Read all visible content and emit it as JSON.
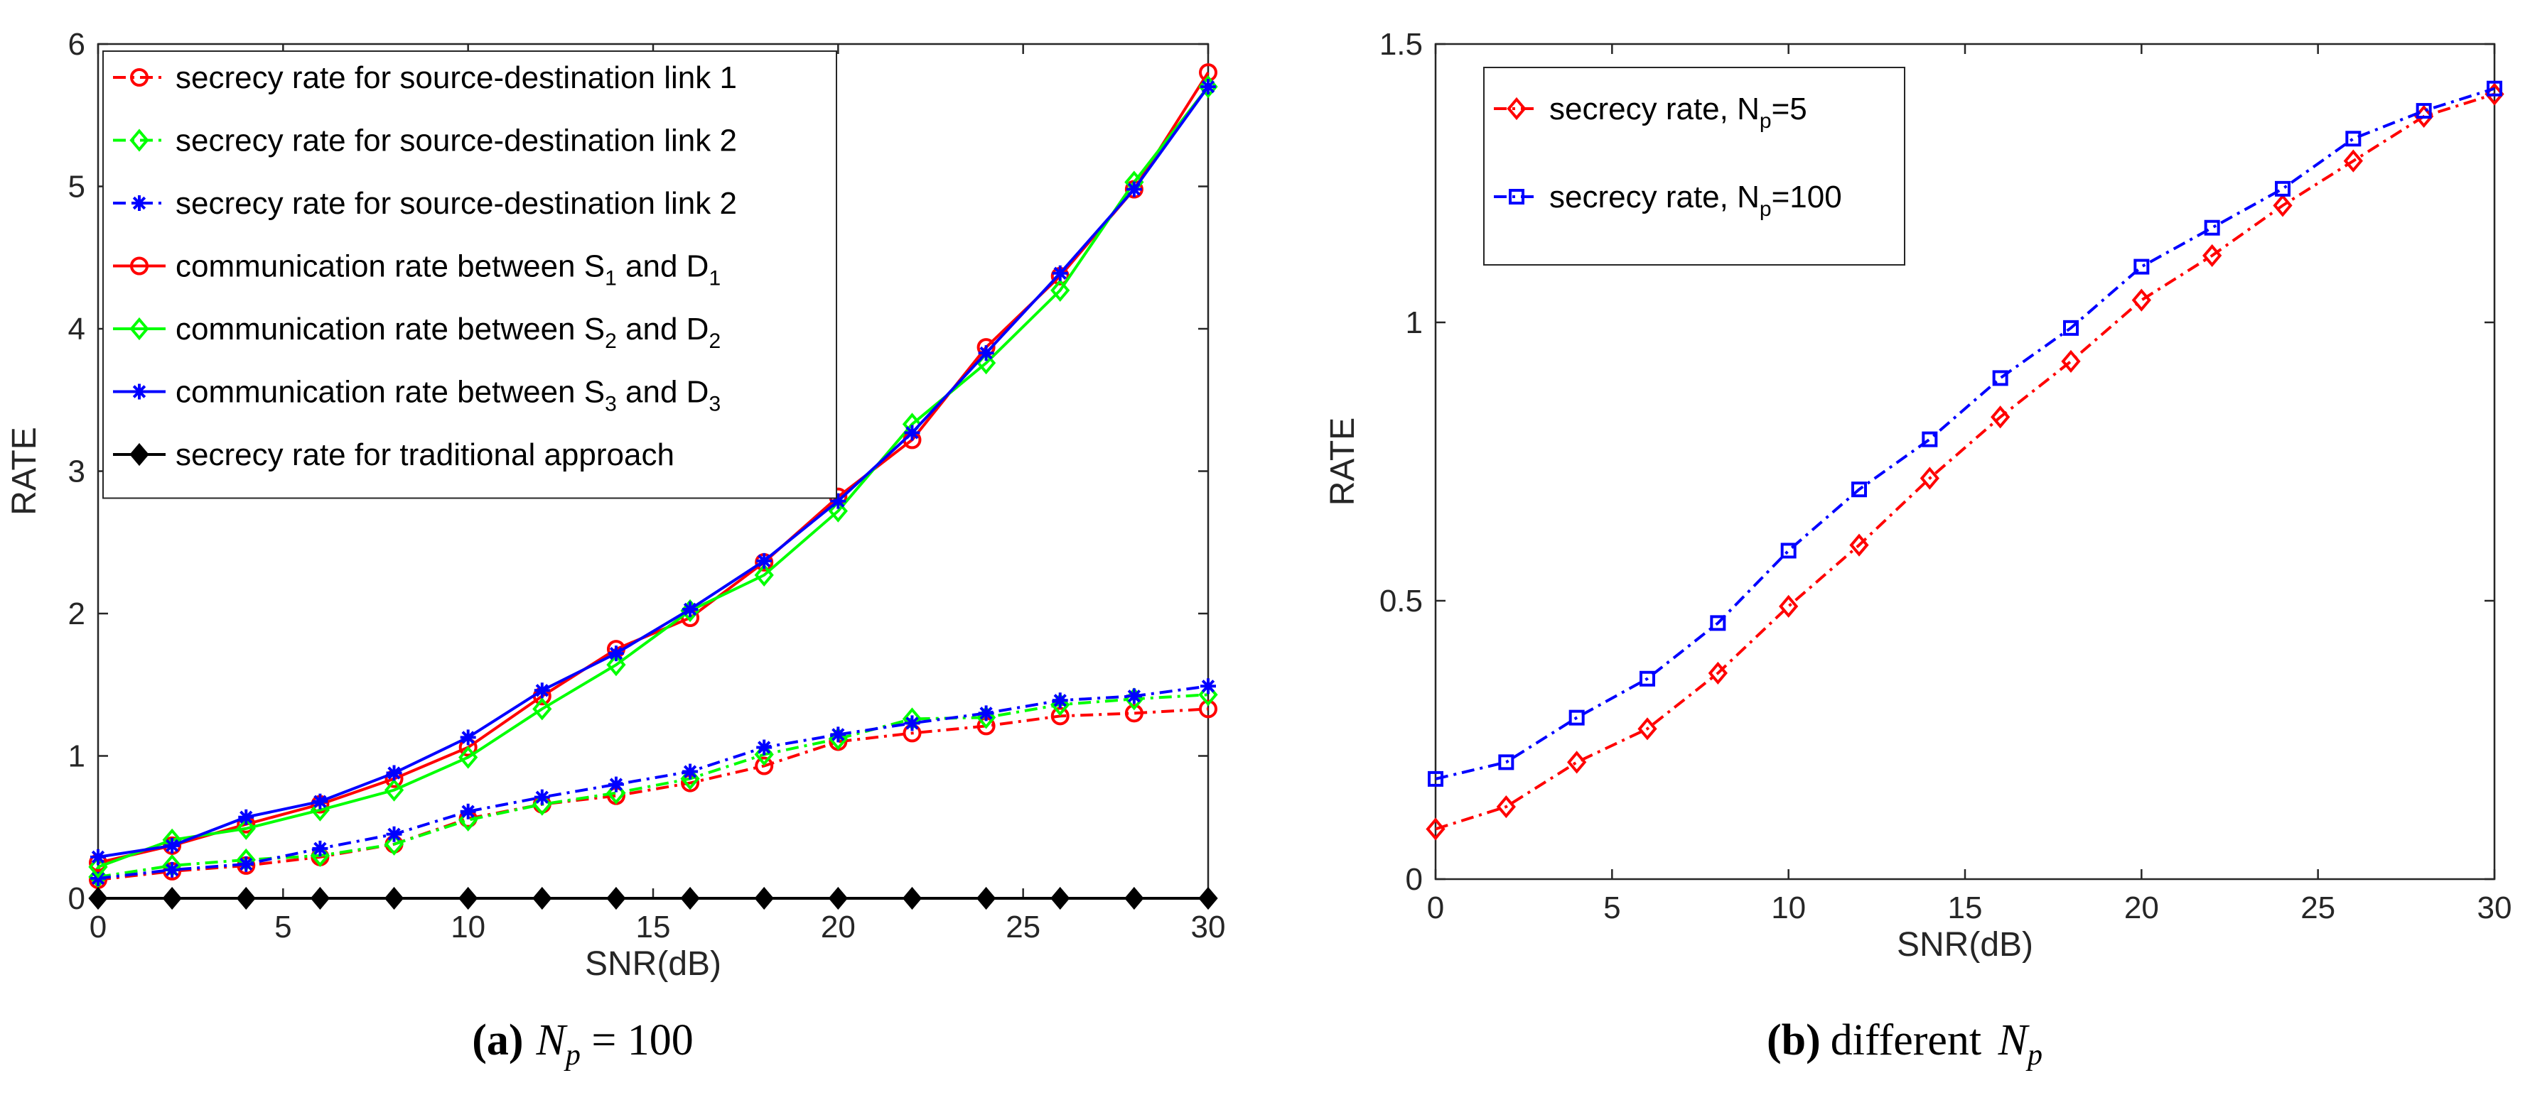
{
  "chart_data": [
    {
      "id": "a",
      "type": "line",
      "xlabel": "SNR(dB)",
      "ylabel": "RATE",
      "xlim": [
        0,
        30
      ],
      "ylim": [
        0,
        6
      ],
      "xticks": [
        "0",
        "5",
        "10",
        "15",
        "20",
        "25",
        "30"
      ],
      "yticks": [
        "0",
        "1",
        "2",
        "3",
        "4",
        "5",
        "6"
      ],
      "x": [
        0,
        2,
        4,
        6,
        8,
        10,
        12,
        14,
        16,
        18,
        20,
        22,
        24,
        26,
        28,
        30
      ],
      "legend_position": "top-left",
      "series": [
        {
          "label_parts": [
            "secrecy rate for source-destination link 1"
          ],
          "color": "#ff0000",
          "dash": "dash-dot",
          "marker": "circle",
          "values": [
            0.13,
            0.19,
            0.23,
            0.29,
            0.38,
            0.56,
            0.66,
            0.72,
            0.81,
            0.93,
            1.1,
            1.16,
            1.21,
            1.28,
            1.3,
            1.33
          ]
        },
        {
          "label_parts": [
            "secrecy rate for source-destination link 2"
          ],
          "color": "#00ff00",
          "dash": "dash-dot",
          "marker": "diamond",
          "values": [
            0.15,
            0.23,
            0.27,
            0.3,
            0.38,
            0.55,
            0.66,
            0.74,
            0.84,
            1.01,
            1.12,
            1.26,
            1.27,
            1.36,
            1.4,
            1.43
          ]
        },
        {
          "label_parts": [
            "secrecy rate for source-destination link 2"
          ],
          "color": "#0000ff",
          "dash": "dash-dot",
          "marker": "star",
          "values": [
            0.14,
            0.2,
            0.24,
            0.35,
            0.45,
            0.61,
            0.71,
            0.8,
            0.89,
            1.06,
            1.15,
            1.23,
            1.3,
            1.39,
            1.42,
            1.49
          ]
        },
        {
          "label_parts": [
            "communication rate between S",
            "1",
            " and D",
            "1"
          ],
          "color": "#ff0000",
          "dash": "solid",
          "marker": "circle",
          "values": [
            0.25,
            0.37,
            0.52,
            0.66,
            0.84,
            1.06,
            1.42,
            1.75,
            1.97,
            2.36,
            2.82,
            3.22,
            3.87,
            4.37,
            4.98,
            5.8
          ]
        },
        {
          "label_parts": [
            "communication rate between S",
            "2",
            " and D",
            "2"
          ],
          "color": "#00ff00",
          "dash": "solid",
          "marker": "diamond",
          "values": [
            0.22,
            0.41,
            0.49,
            0.62,
            0.76,
            0.99,
            1.33,
            1.64,
            2.02,
            2.27,
            2.72,
            3.33,
            3.76,
            4.27,
            5.03,
            5.7
          ]
        },
        {
          "label_parts": [
            "communication rate between S",
            "3",
            " and D",
            "3"
          ],
          "color": "#0000ff",
          "dash": "solid",
          "marker": "star",
          "values": [
            0.29,
            0.37,
            0.57,
            0.68,
            0.88,
            1.13,
            1.46,
            1.72,
            2.03,
            2.37,
            2.79,
            3.27,
            3.83,
            4.39,
            4.98,
            5.7
          ]
        },
        {
          "label_parts": [
            "secrecy rate for traditional approach"
          ],
          "color": "#000000",
          "dash": "solid",
          "marker": "diamond-filled",
          "values": [
            0,
            0,
            0,
            0,
            0,
            0,
            0,
            0,
            0,
            0,
            0,
            0,
            0,
            0,
            0,
            0
          ]
        }
      ]
    },
    {
      "id": "b",
      "type": "line",
      "xlabel": "SNR(dB)",
      "ylabel": "RATE",
      "xlim": [
        0,
        30
      ],
      "ylim": [
        0,
        1.5
      ],
      "xticks": [
        "0",
        "5",
        "10",
        "15",
        "20",
        "25",
        "30"
      ],
      "yticks": [
        "0",
        "0.5",
        "1",
        "1.5"
      ],
      "x": [
        0,
        2,
        4,
        6,
        8,
        10,
        12,
        14,
        16,
        18,
        20,
        22,
        24,
        26,
        28,
        30
      ],
      "legend_position": "top-left",
      "series": [
        {
          "label_parts": [
            "secrecy rate, N",
            "p",
            "=5"
          ],
          "color": "#ff0000",
          "dash": "dash-dot",
          "marker": "diamond",
          "values": [
            0.09,
            0.13,
            0.21,
            0.27,
            0.37,
            0.49,
            0.6,
            0.72,
            0.83,
            0.93,
            1.04,
            1.12,
            1.21,
            1.29,
            1.37,
            1.41
          ]
        },
        {
          "label_parts": [
            "secrecy rate, N",
            "p",
            "=100"
          ],
          "color": "#0000ff",
          "dash": "dash-dot",
          "marker": "square",
          "values": [
            0.18,
            0.21,
            0.29,
            0.36,
            0.46,
            0.59,
            0.7,
            0.79,
            0.9,
            0.99,
            1.1,
            1.17,
            1.24,
            1.33,
            1.38,
            1.42
          ]
        }
      ]
    }
  ],
  "captions": [
    {
      "label": "(a)",
      "text_parts": [
        "N",
        "p",
        " = 100"
      ]
    },
    {
      "label": "(b)",
      "text_parts": [
        "different ",
        "N",
        "p"
      ]
    }
  ]
}
